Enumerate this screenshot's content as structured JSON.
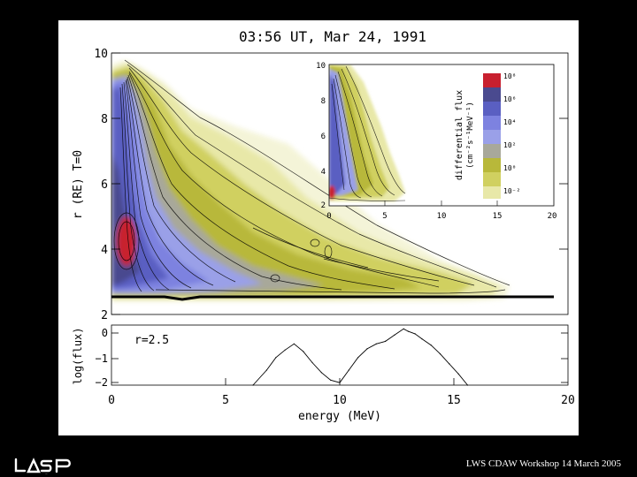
{
  "colors": {
    "background": "#000000",
    "panel": "#ffffff",
    "scale": [
      "#c8202f",
      "#4a4a8f",
      "#5a5fc2",
      "#7d82e0",
      "#9aa0e8",
      "#a8a89a",
      "#b8b83a",
      "#d0d060",
      "#e8e8a8",
      "#f4f4d8"
    ]
  },
  "chart_data": [
    {
      "type": "heatmap",
      "title": "03:56 UT, Mar 24, 1991",
      "xlabel": "",
      "ylabel": "r (RE)   T=0",
      "xlim": [
        0,
        20
      ],
      "ylim": [
        2,
        10
      ],
      "yticks": [
        "2",
        "4",
        "6",
        "8",
        "10"
      ],
      "description_levels": "contoured log differential flux vs energy and radius",
      "peak": {
        "energy_mev": 0.6,
        "r": 4.3,
        "level": "10^6+"
      }
    },
    {
      "type": "heatmap",
      "xlim": [
        0,
        20
      ],
      "ylim": [
        2,
        10
      ],
      "xticks": [
        "0",
        "5",
        "10",
        "15",
        "20"
      ],
      "yticks": [
        "2",
        "4",
        "6",
        "8",
        "10"
      ],
      "colorbar": {
        "label_line1": "differential flux",
        "label_line2": "(cm⁻²s⁻¹MeV⁻¹)",
        "ticks": [
          "10⁸",
          "10⁶",
          "10⁴",
          "10²",
          "10⁰",
          "10⁻²"
        ]
      }
    },
    {
      "type": "line",
      "annotation": "r=2.5",
      "xlabel": "energy (MeV)",
      "ylabel": "log(flux)",
      "xlim": [
        0,
        20
      ],
      "ylim": [
        -2.2,
        0.2
      ],
      "xticks": [
        "0",
        "5",
        "10",
        "15",
        "20"
      ],
      "yticks": [
        "0",
        "−1",
        "−2"
      ],
      "x": [
        6.2,
        6.8,
        7.2,
        7.6,
        8.0,
        8.4,
        8.8,
        9.2,
        9.6,
        10.0,
        10.4,
        10.8,
        11.2,
        11.6,
        12.0,
        12.4,
        12.8,
        13.0,
        13.3,
        13.6,
        14.0,
        14.4,
        14.8,
        15.2,
        15.6
      ],
      "y": [
        -2.2,
        -1.6,
        -1.1,
        -0.8,
        -0.55,
        -0.85,
        -1.3,
        -1.7,
        -2.0,
        -2.1,
        -1.6,
        -1.1,
        -0.75,
        -0.55,
        -0.45,
        -0.2,
        0.05,
        -0.05,
        -0.15,
        -0.35,
        -0.6,
        -0.95,
        -1.35,
        -1.75,
        -2.2
      ]
    }
  ],
  "footer": {
    "logo": "LASP",
    "text": "LWS CDAW Workshop 14 March 2005"
  }
}
